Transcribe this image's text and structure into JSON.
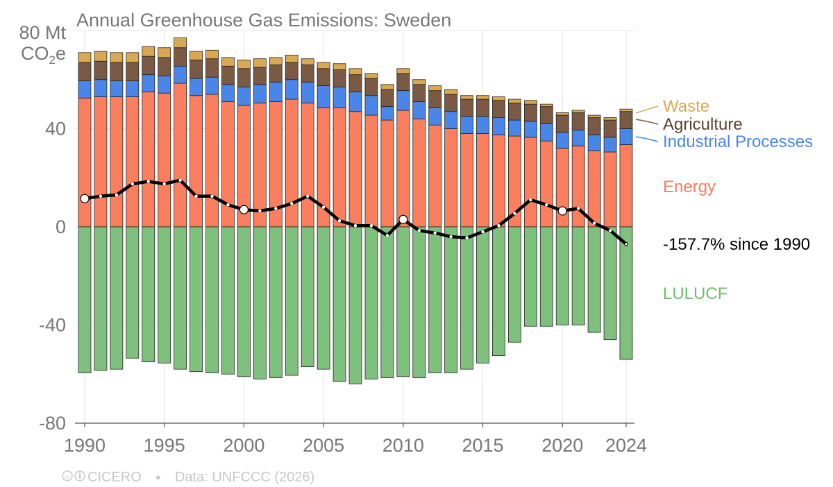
{
  "chart_data": {
    "type": "bar",
    "title": "Annual Greenhouse Gas Emissions: Sweden",
    "ylabel_line1": "80 Mt",
    "ylabel_line2_main": "CO",
    "ylabel_line2_sub": "2",
    "ylabel_line2_end": "e",
    "ylim": [
      -80,
      80
    ],
    "yticks": [
      -80,
      -40,
      0,
      40
    ],
    "ytick_labels": [
      "-80",
      "-40",
      "0",
      "40"
    ],
    "xticks": [
      1990,
      1995,
      2000,
      2005,
      2010,
      2015,
      2020,
      2024
    ],
    "xtick_labels": [
      "1990",
      "1995",
      "2000",
      "2005",
      "2010",
      "2015",
      "2020",
      "2024"
    ],
    "grid": true,
    "stacked": true,
    "years": [
      1990,
      1991,
      1992,
      1993,
      1994,
      1995,
      1996,
      1997,
      1998,
      1999,
      2000,
      2001,
      2002,
      2003,
      2004,
      2005,
      2006,
      2007,
      2008,
      2009,
      2010,
      2011,
      2012,
      2013,
      2014,
      2015,
      2016,
      2017,
      2018,
      2019,
      2020,
      2021,
      2022,
      2023,
      2024
    ],
    "series": [
      {
        "name": "Energy",
        "color": "#fa7f5f",
        "values": [
          52.5,
          53,
          53,
          53,
          55,
          54.5,
          58.5,
          53.5,
          54,
          51,
          49.5,
          50.5,
          51,
          52,
          50.5,
          48.5,
          48.5,
          47,
          45.5,
          43.5,
          47.5,
          44,
          41.5,
          40,
          38,
          38,
          37.5,
          37,
          36.5,
          35,
          32,
          33,
          31,
          30.5,
          33.5
        ]
      },
      {
        "name": "Industrial Processes",
        "color": "#4a86e8",
        "values": [
          7,
          7,
          6.5,
          6.5,
          7,
          7,
          7,
          7,
          7,
          7,
          7.5,
          7.5,
          8,
          8,
          8.5,
          9,
          8.5,
          8,
          8,
          5.5,
          8,
          7,
          7,
          7,
          7,
          7,
          7,
          6.5,
          6.5,
          7,
          6.5,
          6.5,
          6.5,
          6,
          6.5
        ]
      },
      {
        "name": "Agriculture",
        "color": "#7a5a44",
        "values": [
          7.5,
          7.5,
          7.5,
          7.5,
          7.5,
          7.5,
          7.5,
          7.5,
          7.5,
          7.5,
          7.5,
          7,
          7,
          7,
          7,
          7,
          7,
          7,
          7,
          7,
          7,
          7,
          7,
          7,
          7,
          7,
          7,
          7,
          7,
          7,
          7,
          7,
          7,
          7,
          7
        ]
      },
      {
        "name": "Waste",
        "color": "#d9a854",
        "values": [
          4,
          4,
          4,
          4,
          4,
          4,
          4,
          3.5,
          3.5,
          3.5,
          3.5,
          3.5,
          3,
          3,
          2.5,
          2.5,
          2.5,
          2.5,
          2,
          2,
          2,
          2,
          2,
          2,
          1.5,
          1.5,
          1.5,
          1.5,
          1.5,
          1,
          1,
          1,
          1,
          1,
          1
        ]
      },
      {
        "name": "LULUCF",
        "color": "#7fc07f",
        "values": [
          -59.5,
          -58.5,
          -58,
          -53.5,
          -55,
          -55.5,
          -58,
          -59,
          -59.5,
          -60,
          -61,
          -62,
          -61.5,
          -60.5,
          -57,
          -58,
          -63,
          -64,
          -62,
          -61.5,
          -61,
          -61.5,
          -59.5,
          -59.5,
          -58,
          -55.5,
          -52.5,
          -47,
          -40.5,
          -40.5,
          -40,
          -40,
          -43,
          -46,
          -54
        ]
      }
    ],
    "net_line": {
      "name": "Net",
      "color": "#000000",
      "values": [
        11.5,
        12.5,
        13,
        17.5,
        18.5,
        17.5,
        19,
        12.5,
        12.5,
        9,
        7,
        6.5,
        7.5,
        9.5,
        12.5,
        8,
        2.5,
        0.5,
        0.5,
        -3.5,
        3,
        -1.5,
        -2.5,
        -4,
        -4.5,
        -2,
        0.5,
        5.5,
        11,
        9,
        6.5,
        7.5,
        1.5,
        -1.5,
        -7
      ],
      "highlight_years": [
        1990,
        2000,
        2010,
        2020
      ]
    },
    "right_labels": [
      {
        "text": "Waste",
        "color": "#d9a854"
      },
      {
        "text": "Agriculture",
        "color": "#5a4232"
      },
      {
        "text": "Industrial Processes",
        "color": "#4a86e8"
      },
      {
        "text": "Energy",
        "color": "#fa7f5f"
      },
      {
        "text": "-157.7% since 1990",
        "color": "#000000"
      },
      {
        "text": "LULUCF",
        "color": "#6cbf6c"
      }
    ],
    "footer": {
      "license": "CICERO",
      "separator": "●",
      "source": "Data: UNFCCC (2026)"
    }
  }
}
